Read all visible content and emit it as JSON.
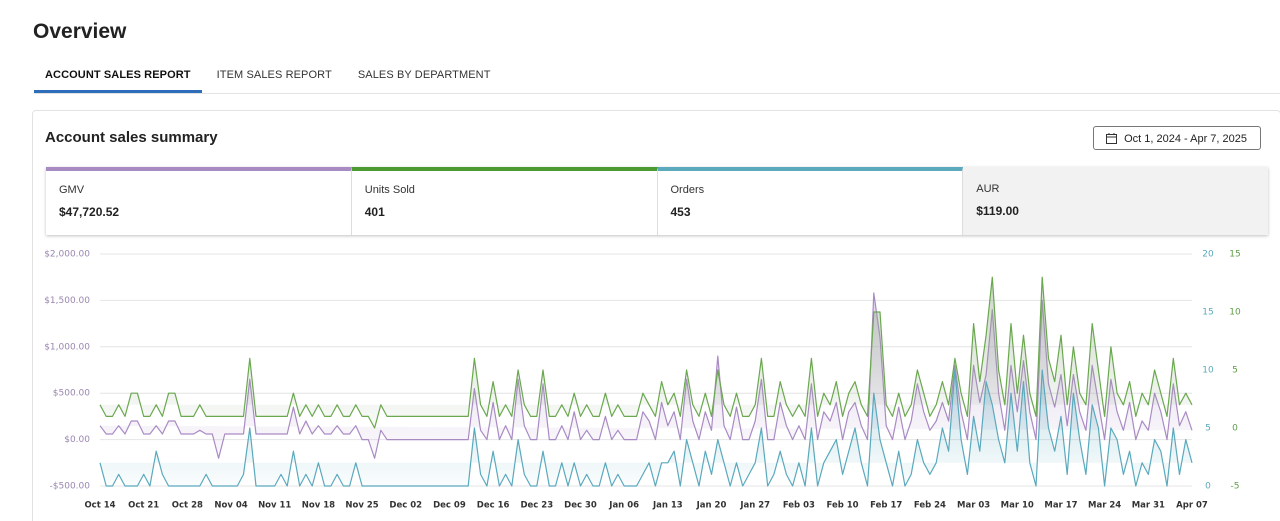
{
  "header": {
    "title": "Overview"
  },
  "tabs": [
    "ACCOUNT SALES REPORT",
    "ITEM SALES REPORT",
    "SALES BY DEPARTMENT"
  ],
  "card": {
    "title": "Account sales summary",
    "date_range": "Oct 1, 2024 - Apr 7, 2025"
  },
  "kpis": [
    {
      "label": "GMV",
      "value": "$47,720.52"
    },
    {
      "label": "Units Sold",
      "value": "401"
    },
    {
      "label": "Orders",
      "value": "453"
    },
    {
      "label": "AUR",
      "value": "$119.00"
    }
  ],
  "chart_data": {
    "type": "line",
    "categories": [
      "Oct 14",
      null,
      null,
      null,
      null,
      null,
      null,
      "Oct 21",
      null,
      null,
      null,
      null,
      null,
      null,
      "Oct 28",
      null,
      null,
      null,
      null,
      null,
      null,
      "Nov 04",
      null,
      null,
      null,
      null,
      null,
      null,
      "Nov 11",
      null,
      null,
      null,
      null,
      null,
      null,
      "Nov 18",
      null,
      null,
      null,
      null,
      null,
      null,
      "Nov 25",
      null,
      null,
      null,
      null,
      null,
      null,
      "Dec 02",
      null,
      null,
      null,
      null,
      null,
      null,
      "Dec 09",
      null,
      null,
      null,
      null,
      null,
      null,
      "Dec 16",
      null,
      null,
      null,
      null,
      null,
      null,
      "Dec 23",
      null,
      null,
      null,
      null,
      null,
      null,
      "Dec 30",
      null,
      null,
      null,
      null,
      null,
      null,
      "Jan 06",
      null,
      null,
      null,
      null,
      null,
      null,
      "Jan 13",
      null,
      null,
      null,
      null,
      null,
      null,
      "Jan 20",
      null,
      null,
      null,
      null,
      null,
      null,
      "Jan 27",
      null,
      null,
      null,
      null,
      null,
      null,
      "Feb 03",
      null,
      null,
      null,
      null,
      null,
      null,
      "Feb 10",
      null,
      null,
      null,
      null,
      null,
      null,
      "Feb 17",
      null,
      null,
      null,
      null,
      null,
      null,
      "Feb 24",
      null,
      null,
      null,
      null,
      null,
      null,
      "Mar 03",
      null,
      null,
      null,
      null,
      null,
      null,
      "Mar 10",
      null,
      null,
      null,
      null,
      null,
      null,
      "Mar 17",
      null,
      null,
      null,
      null,
      null,
      null,
      "Mar 24",
      null,
      null,
      null,
      null,
      null,
      null,
      "Mar 31",
      null,
      null,
      null,
      null,
      null,
      null,
      "Apr 07"
    ],
    "ylim": [
      -500,
      2000
    ],
    "yticks": [
      {
        "value": -500,
        "label": "-$500.00"
      },
      {
        "value": 0,
        "label": "$0.00"
      },
      {
        "value": 500,
        "label": "$500.00"
      },
      {
        "value": 1000,
        "label": "$1,000.00"
      },
      {
        "value": 1500,
        "label": "$1,500.00"
      },
      {
        "value": 2000,
        "label": "$2,000.00"
      }
    ],
    "y2lim": [
      0,
      20
    ],
    "y2ticks": [
      0,
      5,
      10,
      15,
      20
    ],
    "y2color": "#5aa9bd",
    "y3lim": [
      -5,
      15
    ],
    "y3ticks": [
      -5,
      0,
      5,
      10,
      15
    ],
    "y3color": "#5e9e45",
    "grid": true,
    "series": [
      {
        "color": "#a98bc4",
        "axis": "y",
        "values": [
          150,
          60,
          60,
          150,
          60,
          200,
          200,
          60,
          60,
          150,
          60,
          200,
          200,
          60,
          60,
          60,
          100,
          60,
          60,
          -200,
          60,
          60,
          60,
          60,
          650,
          60,
          60,
          60,
          60,
          60,
          60,
          350,
          60,
          200,
          60,
          150,
          60,
          60,
          150,
          60,
          60,
          150,
          0,
          0,
          -200,
          100,
          0,
          0,
          0,
          0,
          0,
          0,
          0,
          0,
          0,
          0,
          0,
          0,
          0,
          0,
          550,
          100,
          0,
          400,
          0,
          150,
          0,
          650,
          150,
          0,
          0,
          600,
          0,
          0,
          150,
          0,
          300,
          0,
          100,
          0,
          0,
          250,
          0,
          100,
          0,
          0,
          0,
          300,
          200,
          0,
          400,
          150,
          300,
          0,
          650,
          200,
          0,
          300,
          100,
          900,
          150,
          0,
          350,
          0,
          0,
          200,
          650,
          0,
          0,
          400,
          150,
          0,
          150,
          0,
          600,
          0,
          300,
          200,
          400,
          0,
          300,
          400,
          150,
          0,
          1580,
          1100,
          150,
          0,
          350,
          0,
          200,
          600,
          300,
          100,
          200,
          400,
          200,
          800,
          300,
          0,
          800,
          400,
          700,
          1400,
          500,
          100,
          800,
          300,
          850,
          300,
          0,
          1500,
          600,
          350,
          700,
          150,
          700,
          300,
          100,
          800,
          400,
          0,
          650,
          300,
          100,
          400,
          0,
          200,
          100,
          500,
          300,
          0,
          600,
          150,
          300,
          100
        ]
      },
      {
        "color": "#6aa84f",
        "axis": "y3",
        "values": [
          2,
          1,
          1,
          2,
          1,
          3,
          3,
          1,
          1,
          2,
          1,
          3,
          3,
          1,
          1,
          1,
          2,
          1,
          1,
          1,
          1,
          1,
          1,
          1,
          6,
          1,
          1,
          1,
          1,
          1,
          1,
          3,
          1,
          2,
          1,
          2,
          1,
          1,
          2,
          1,
          1,
          2,
          1,
          1,
          0,
          2,
          1,
          1,
          1,
          1,
          1,
          1,
          1,
          1,
          1,
          1,
          1,
          1,
          1,
          1,
          6,
          2,
          1,
          4,
          1,
          2,
          1,
          5,
          2,
          1,
          1,
          5,
          1,
          1,
          2,
          1,
          3,
          1,
          2,
          1,
          1,
          3,
          1,
          2,
          1,
          1,
          1,
          3,
          2,
          1,
          4,
          2,
          3,
          1,
          5,
          2,
          1,
          3,
          1,
          5,
          2,
          1,
          3,
          1,
          1,
          2,
          6,
          1,
          1,
          4,
          2,
          1,
          2,
          1,
          6,
          1,
          3,
          2,
          4,
          1,
          3,
          4,
          2,
          1,
          10,
          10,
          2,
          1,
          3,
          1,
          2,
          5,
          3,
          1,
          2,
          4,
          2,
          6,
          3,
          1,
          9,
          4,
          8,
          13,
          5,
          2,
          9,
          3,
          8,
          3,
          1,
          13,
          6,
          4,
          8,
          2,
          7,
          3,
          2,
          9,
          5,
          1,
          7,
          3,
          2,
          4,
          1,
          3,
          2,
          5,
          3,
          1,
          6,
          2,
          3,
          2
        ]
      },
      {
        "color": "#5aa9bd",
        "axis": "y2",
        "values": [
          2,
          0,
          0,
          1,
          0,
          0,
          0,
          1,
          0,
          3,
          1,
          0,
          0,
          0,
          0,
          0,
          0,
          1,
          0,
          0,
          0,
          0,
          0,
          1,
          5,
          0,
          0,
          0,
          0,
          1,
          0,
          3,
          0,
          1,
          0,
          2,
          0,
          0,
          1,
          0,
          0,
          2,
          0,
          0,
          0,
          0,
          0,
          0,
          0,
          0,
          0,
          0,
          0,
          0,
          0,
          0,
          0,
          0,
          0,
          0,
          5,
          1,
          0,
          3,
          0,
          1,
          0,
          4,
          1,
          0,
          0,
          3,
          0,
          0,
          2,
          0,
          2,
          0,
          1,
          0,
          0,
          2,
          0,
          1,
          0,
          0,
          0,
          1,
          2,
          0,
          2,
          2,
          3,
          0,
          4,
          2,
          0,
          3,
          1,
          4,
          2,
          0,
          2,
          0,
          1,
          2,
          5,
          0,
          1,
          3,
          1,
          0,
          2,
          0,
          5,
          0,
          2,
          3,
          4,
          1,
          3,
          5,
          2,
          0,
          8,
          4,
          2,
          0,
          3,
          0,
          1,
          4,
          2,
          1,
          2,
          5,
          3,
          10,
          4,
          1,
          6,
          3,
          9,
          7,
          4,
          2,
          8,
          3,
          9,
          2,
          0,
          10,
          5,
          3,
          6,
          1,
          8,
          4,
          1,
          7,
          5,
          0,
          5,
          4,
          1,
          3,
          0,
          2,
          1,
          4,
          3,
          0,
          5,
          1,
          4,
          2
        ]
      }
    ]
  }
}
